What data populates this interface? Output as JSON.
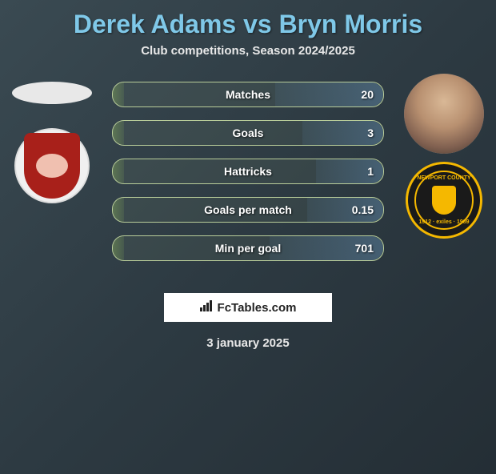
{
  "title": "Derek Adams vs Bryn Morris",
  "subtitle": "Club competitions, Season 2024/2025",
  "date": "3 january 2025",
  "branding": "FcTables.com",
  "colors": {
    "title": "#7fc8e8",
    "text": "#e8e8e8",
    "bar_border": "#b8cc99",
    "club_left_shield": "#a8201a",
    "club_right_bg": "#1a1a1a",
    "club_right_accent": "#f5b800"
  },
  "player_left": {
    "name": "Derek Adams",
    "club": "Morecambe FC"
  },
  "player_right": {
    "name": "Bryn Morris",
    "club": "Newport County AFC",
    "club_years": "1912 · exiles · 1989"
  },
  "stats": [
    {
      "label": "Matches",
      "right_value": "20",
      "left_fill_pct": 4,
      "right_fill_pct": 40
    },
    {
      "label": "Goals",
      "right_value": "3",
      "left_fill_pct": 4,
      "right_fill_pct": 30
    },
    {
      "label": "Hattricks",
      "right_value": "1",
      "left_fill_pct": 4,
      "right_fill_pct": 25
    },
    {
      "label": "Goals per match",
      "right_value": "0.15",
      "left_fill_pct": 4,
      "right_fill_pct": 28
    },
    {
      "label": "Min per goal",
      "right_value": "701",
      "left_fill_pct": 4,
      "right_fill_pct": 42
    }
  ]
}
